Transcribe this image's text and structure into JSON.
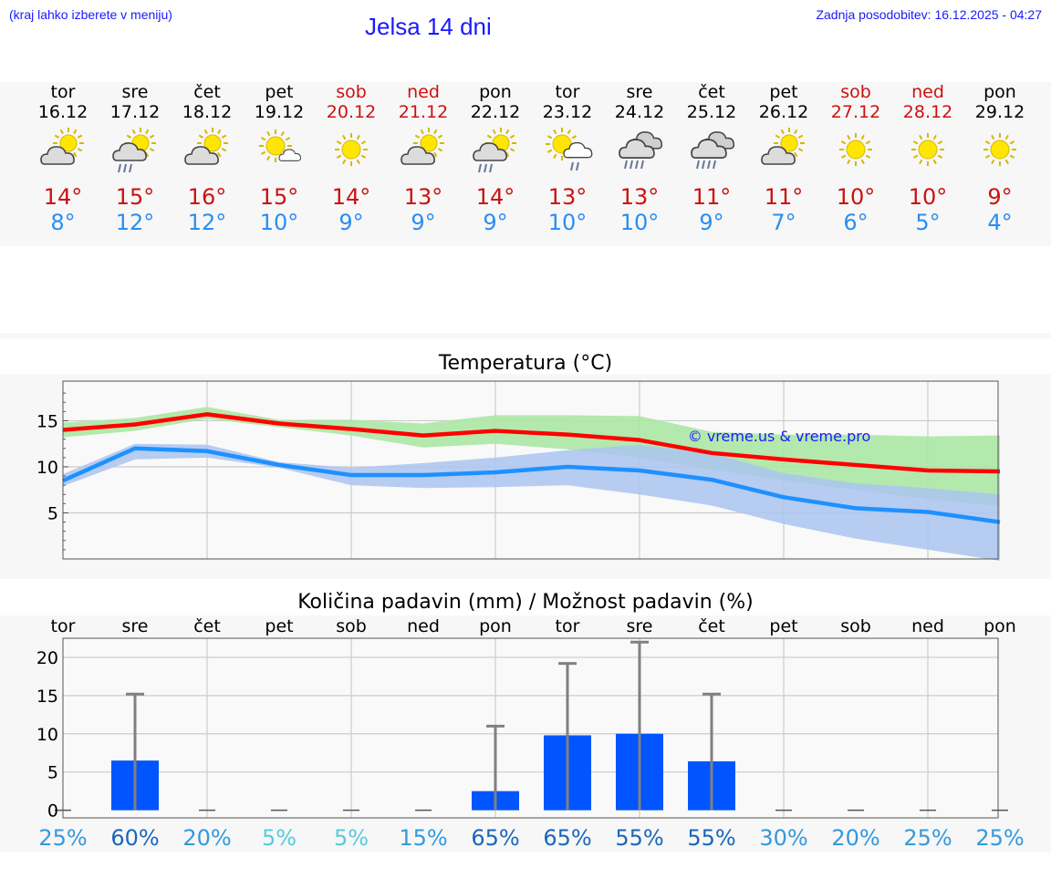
{
  "header": {
    "menu_hint": "(kraj lahko izberete v meniju)",
    "title": "Jelsa 14 dni",
    "updated": "Zadnja posodobitev: 16.12.2025 - 04:27"
  },
  "days": [
    {
      "name": "tor",
      "date": "16.12",
      "icon": "sun-cloud-icon",
      "max": "14°",
      "min": "8°",
      "weekend": false
    },
    {
      "name": "sre",
      "date": "17.12",
      "icon": "sun-cloud-rain-icon",
      "max": "15°",
      "min": "12°",
      "weekend": false
    },
    {
      "name": "čet",
      "date": "18.12",
      "icon": "sun-cloud-icon",
      "max": "16°",
      "min": "12°",
      "weekend": false
    },
    {
      "name": "pet",
      "date": "19.12",
      "icon": "sun-small-cloud-icon",
      "max": "15°",
      "min": "10°",
      "weekend": false
    },
    {
      "name": "sob",
      "date": "20.12",
      "icon": "sun-icon",
      "max": "14°",
      "min": "9°",
      "weekend": true
    },
    {
      "name": "ned",
      "date": "21.12",
      "icon": "sun-cloud-icon",
      "max": "13°",
      "min": "9°",
      "weekend": true
    },
    {
      "name": "pon",
      "date": "22.12",
      "icon": "sun-cloud-rain-icon",
      "max": "14°",
      "min": "9°",
      "weekend": false
    },
    {
      "name": "tor",
      "date": "23.12",
      "icon": "sun-small-cloud-rain-icon",
      "max": "13°",
      "min": "10°",
      "weekend": false
    },
    {
      "name": "sre",
      "date": "24.12",
      "icon": "cloud-rain-icon",
      "max": "13°",
      "min": "10°",
      "weekend": false
    },
    {
      "name": "čet",
      "date": "25.12",
      "icon": "cloud-rain-icon",
      "max": "11°",
      "min": "9°",
      "weekend": false
    },
    {
      "name": "pet",
      "date": "26.12",
      "icon": "sun-cloud-icon",
      "max": "11°",
      "min": "7°",
      "weekend": false
    },
    {
      "name": "sob",
      "date": "27.12",
      "icon": "sun-icon",
      "max": "10°",
      "min": "6°",
      "weekend": true
    },
    {
      "name": "ned",
      "date": "28.12",
      "icon": "sun-icon",
      "max": "10°",
      "min": "5°",
      "weekend": true
    },
    {
      "name": "pon",
      "date": "29.12",
      "icon": "sun-icon",
      "max": "9°",
      "min": "4°",
      "weekend": false
    }
  ],
  "colors": {
    "max": "#ff0000",
    "min": "#1e90ff",
    "band_max": "#a8e6a0",
    "band_min": "#aac4f0",
    "bar": "#0055ff",
    "err": "#808080"
  },
  "chart_data": [
    {
      "type": "line",
      "title": "Temperatura (°C)",
      "watermark": "© vreme.us & vreme.pro",
      "x": [
        0,
        1,
        2,
        3,
        4,
        5,
        6,
        7,
        8,
        9,
        10,
        11,
        12,
        13
      ],
      "ylim": [
        0,
        19.3
      ],
      "yticks": [
        "5",
        "10",
        "15"
      ],
      "ytick_values": [
        5,
        10,
        15
      ],
      "series": [
        {
          "name": "max",
          "values": [
            14.0,
            14.6,
            15.7,
            14.7,
            14.1,
            13.4,
            13.9,
            13.5,
            12.9,
            11.5,
            10.8,
            10.2,
            9.6,
            9.5
          ],
          "band_low": [
            13.2,
            13.9,
            15.2,
            14.3,
            13.4,
            12.1,
            12.5,
            11.9,
            11.0,
            9.7,
            8.5,
            7.5,
            6.5,
            5.7
          ],
          "band_high": [
            14.8,
            15.3,
            16.5,
            15.1,
            15.1,
            14.7,
            15.6,
            15.6,
            15.5,
            13.8,
            13.5,
            13.5,
            13.3,
            13.4
          ]
        },
        {
          "name": "min",
          "values": [
            8.5,
            12.0,
            11.7,
            10.2,
            9.1,
            9.1,
            9.4,
            10.0,
            9.6,
            8.6,
            6.7,
            5.5,
            5.1,
            4.0
          ],
          "band_low": [
            7.9,
            10.8,
            11.0,
            9.9,
            8.0,
            7.7,
            7.8,
            8.0,
            7.0,
            5.8,
            3.8,
            2.2,
            1.0,
            -0.2
          ],
          "band_high": [
            9.2,
            12.5,
            12.4,
            10.5,
            9.9,
            10.4,
            11.0,
            11.8,
            12.4,
            11.5,
            9.3,
            8.2,
            7.7,
            7.0
          ]
        }
      ]
    },
    {
      "type": "bar",
      "title": "Količina padavin (mm) / Možnost padavin (%)",
      "categories": [
        "tor",
        "sre",
        "čet",
        "pet",
        "sob",
        "ned",
        "pon",
        "tor",
        "sre",
        "čet",
        "pet",
        "sob",
        "ned",
        "pon"
      ],
      "values": [
        0,
        6.5,
        0,
        0,
        0,
        0,
        2.5,
        9.8,
        10.0,
        6.4,
        0,
        0,
        0,
        0
      ],
      "err_high": [
        0,
        15.2,
        0,
        0,
        0,
        0,
        11.0,
        19.2,
        22.0,
        15.2,
        0,
        0,
        0,
        0
      ],
      "yticks": [
        "0",
        "5",
        "10",
        "15",
        "20"
      ],
      "ytick_values": [
        0,
        5,
        10,
        15,
        20
      ],
      "ylim": [
        -1,
        22.5
      ],
      "probability": [
        "25%",
        "60%",
        "20%",
        "5%",
        "5%",
        "15%",
        "65%",
        "65%",
        "55%",
        "55%",
        "30%",
        "20%",
        "25%",
        "25%"
      ],
      "probability_colors": [
        "#3399dd",
        "#1a66bb",
        "#3399dd",
        "#55ccdd",
        "#55ccdd",
        "#3399dd",
        "#1a66bb",
        "#1a66bb",
        "#1a66bb",
        "#1a66bb",
        "#3399dd",
        "#3399dd",
        "#3399dd",
        "#3399dd"
      ]
    }
  ]
}
